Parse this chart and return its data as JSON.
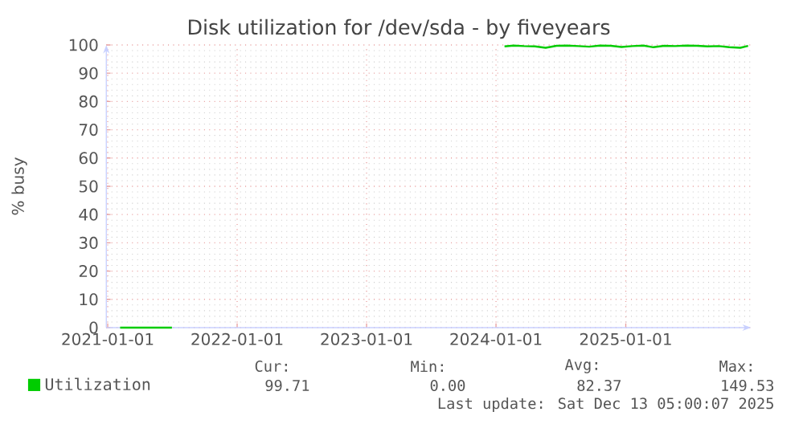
{
  "chart_data": {
    "type": "line",
    "title": "Disk utilization for /dev/sda - by fiveyears",
    "ylabel": "% busy",
    "x": [
      "2021-02-05",
      "2021-04-01",
      "2021-07-01",
      "2022-10-01",
      "2024-01-25",
      "2024-02-20",
      "2024-03-20",
      "2024-04-20",
      "2024-05-20",
      "2024-06-20",
      "2024-07-20",
      "2024-08-20",
      "2024-09-20",
      "2024-10-20",
      "2024-11-20",
      "2024-12-20",
      "2025-01-20",
      "2025-02-20",
      "2025-03-20",
      "2025-04-20",
      "2025-05-20",
      "2025-06-20",
      "2025-07-20",
      "2025-08-20",
      "2025-09-20",
      "2025-10-20",
      "2025-11-20",
      "2025-12-12"
    ],
    "series": [
      {
        "name": "Utilization",
        "color": "#00cc00",
        "values": [
          0,
          0,
          0,
          null,
          99.5,
          99.8,
          99.6,
          99.5,
          99.0,
          99.7,
          99.8,
          99.6,
          99.4,
          99.8,
          99.7,
          99.3,
          99.6,
          99.8,
          99.2,
          99.7,
          99.6,
          99.8,
          99.7,
          99.5,
          99.6,
          99.2,
          99.0,
          99.7
        ]
      }
    ],
    "xlim": [
      "2020-12-28",
      "2025-12-20"
    ],
    "xticks": [
      "2021-01-01",
      "2022-01-01",
      "2023-01-01",
      "2024-01-01",
      "2025-01-01"
    ],
    "ylim": [
      0,
      100
    ],
    "yticks": [
      0,
      10,
      20,
      30,
      40,
      50,
      60,
      70,
      80,
      90,
      100
    ],
    "grid": true,
    "legend": "bottom",
    "annotations": [
      "Cur:",
      "Min:",
      "Avg:",
      "Max:",
      "99.71",
      "0.00",
      "82.37",
      "149.53",
      "Last update: Sat Dec 13 05:00:07 2025"
    ]
  }
}
